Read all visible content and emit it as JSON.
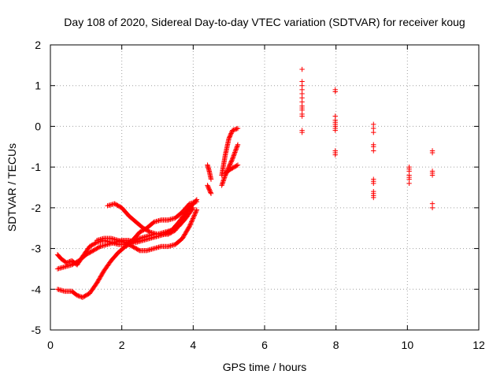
{
  "chart_data": {
    "type": "scatter",
    "title": "Day 108 of 2020, Sidereal Day-to-day VTEC variation (SDTVAR) for receiver koug",
    "xlabel": "GPS time / hours",
    "ylabel": "SDTVAR / TECUs",
    "xlim": [
      0,
      12
    ],
    "ylim": [
      -5,
      2
    ],
    "xticks": [
      0,
      2,
      4,
      6,
      8,
      10,
      12
    ],
    "yticks": [
      -5,
      -4,
      -3,
      -2,
      -1,
      0,
      1,
      2
    ],
    "grid": true,
    "marker": "+",
    "color": "#ff0000",
    "tracks": [
      [
        [
          0.2,
          -4.0
        ],
        [
          0.4,
          -4.05
        ],
        [
          0.6,
          -4.05
        ],
        [
          0.75,
          -4.15
        ],
        [
          0.9,
          -4.2
        ],
        [
          1.1,
          -4.1
        ],
        [
          1.3,
          -3.85
        ],
        [
          1.5,
          -3.55
        ],
        [
          1.7,
          -3.3
        ],
        [
          1.9,
          -3.1
        ],
        [
          2.1,
          -2.95
        ],
        [
          2.3,
          -2.85
        ],
        [
          2.5,
          -2.75
        ],
        [
          2.7,
          -2.7
        ],
        [
          2.9,
          -2.65
        ],
        [
          3.1,
          -2.65
        ],
        [
          3.3,
          -2.65
        ],
        [
          3.5,
          -2.55
        ],
        [
          3.7,
          -2.3
        ],
        [
          3.9,
          -2.0
        ],
        [
          4.1,
          -1.8
        ]
      ],
      [
        [
          0.2,
          -3.15
        ],
        [
          0.3,
          -3.25
        ],
        [
          0.45,
          -3.35
        ],
        [
          0.6,
          -3.3
        ],
        [
          0.75,
          -3.4
        ],
        [
          0.9,
          -3.2
        ],
        [
          1.1,
          -2.95
        ],
        [
          1.3,
          -2.85
        ],
        [
          1.5,
          -2.8
        ],
        [
          1.7,
          -2.85
        ],
        [
          1.9,
          -2.9
        ],
        [
          2.1,
          -2.9
        ],
        [
          2.3,
          -2.8
        ],
        [
          2.5,
          -2.6
        ],
        [
          2.7,
          -2.5
        ],
        [
          2.9,
          -2.35
        ],
        [
          3.1,
          -2.3
        ],
        [
          3.3,
          -2.3
        ],
        [
          3.5,
          -2.25
        ],
        [
          3.7,
          -2.1
        ],
        [
          3.9,
          -1.9
        ],
        [
          4.1,
          -1.85
        ]
      ],
      [
        [
          0.2,
          -3.5
        ],
        [
          0.4,
          -3.45
        ],
        [
          0.6,
          -3.4
        ],
        [
          0.8,
          -3.3
        ],
        [
          1.0,
          -3.15
        ],
        [
          1.2,
          -3.05
        ],
        [
          1.4,
          -2.95
        ],
        [
          1.6,
          -2.9
        ],
        [
          1.8,
          -2.85
        ],
        [
          2.0,
          -2.8
        ],
        [
          2.2,
          -2.8
        ],
        [
          2.4,
          -2.85
        ],
        [
          2.6,
          -2.8
        ],
        [
          2.8,
          -2.75
        ],
        [
          3.0,
          -2.7
        ],
        [
          3.2,
          -2.65
        ],
        [
          3.4,
          -2.55
        ],
        [
          3.6,
          -2.35
        ],
        [
          3.8,
          -2.1
        ],
        [
          4.0,
          -1.9
        ]
      ],
      [
        [
          1.6,
          -1.95
        ],
        [
          1.8,
          -1.9
        ],
        [
          2.0,
          -2.0
        ],
        [
          2.2,
          -2.2
        ],
        [
          2.4,
          -2.35
        ],
        [
          2.6,
          -2.5
        ],
        [
          2.8,
          -2.6
        ],
        [
          3.0,
          -2.65
        ],
        [
          3.2,
          -2.6
        ],
        [
          3.4,
          -2.55
        ],
        [
          3.6,
          -2.45
        ],
        [
          3.8,
          -2.25
        ],
        [
          4.0,
          -2.0
        ]
      ],
      [
        [
          1.3,
          -2.8
        ],
        [
          1.5,
          -2.75
        ],
        [
          1.7,
          -2.75
        ],
        [
          1.9,
          -2.8
        ],
        [
          2.1,
          -2.85
        ],
        [
          2.3,
          -2.95
        ],
        [
          2.5,
          -3.05
        ],
        [
          2.7,
          -3.05
        ],
        [
          2.9,
          -3.0
        ],
        [
          3.1,
          -2.95
        ],
        [
          3.3,
          -2.95
        ],
        [
          3.5,
          -2.9
        ],
        [
          3.7,
          -2.75
        ],
        [
          3.9,
          -2.45
        ],
        [
          4.1,
          -2.05
        ]
      ],
      [
        [
          4.4,
          -0.95
        ],
        [
          4.45,
          -1.1
        ],
        [
          4.5,
          -1.3
        ]
      ],
      [
        [
          4.4,
          -1.45
        ],
        [
          4.45,
          -1.55
        ],
        [
          4.5,
          -1.65
        ]
      ],
      [
        [
          4.8,
          -1.2
        ],
        [
          4.9,
          -0.7
        ],
        [
          5.0,
          -0.3
        ],
        [
          5.1,
          -0.1
        ],
        [
          5.25,
          -0.05
        ]
      ],
      [
        [
          4.8,
          -1.45
        ],
        [
          4.9,
          -1.2
        ],
        [
          5.0,
          -1.0
        ],
        [
          5.1,
          -0.8
        ],
        [
          5.25,
          -0.45
        ]
      ],
      [
        [
          4.9,
          -1.15
        ],
        [
          5.05,
          -1.05
        ],
        [
          5.25,
          -0.95
        ]
      ]
    ],
    "columns": [
      {
        "x": 7.05,
        "y": [
          1.4,
          1.1,
          1.0,
          0.9,
          0.8,
          0.7,
          0.6,
          0.5,
          0.45,
          0.4,
          0.3,
          0.25,
          -0.1,
          -0.15
        ]
      },
      {
        "x": 7.98,
        "y": [
          0.9,
          0.85,
          0.25,
          0.15,
          0.1,
          0.05,
          0.0,
          -0.05,
          -0.1,
          -0.6,
          -0.65,
          -0.7
        ]
      },
      {
        "x": 9.05,
        "y": [
          0.05,
          -0.05,
          -0.15,
          -0.45,
          -0.5,
          -0.6,
          -1.3,
          -1.35,
          -1.4,
          -1.6,
          -1.65,
          -1.7,
          -1.75
        ]
      },
      {
        "x": 10.05,
        "y": [
          -1.0,
          -1.05,
          -1.1,
          -1.2,
          -1.25,
          -1.3,
          -1.4
        ]
      },
      {
        "x": 10.7,
        "y": [
          -0.6,
          -0.65,
          -1.1,
          -1.15,
          -1.2,
          -1.9,
          -2.0
        ]
      }
    ]
  }
}
